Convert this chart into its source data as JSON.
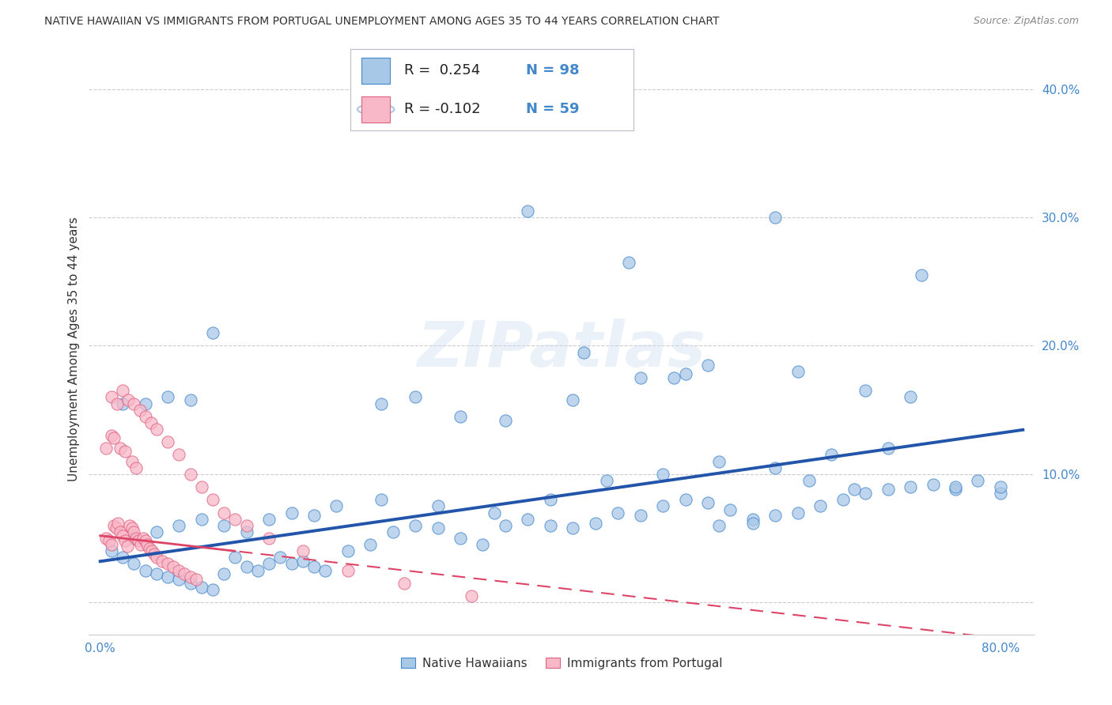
{
  "title": "NATIVE HAWAIIAN VS IMMIGRANTS FROM PORTUGAL UNEMPLOYMENT AMONG AGES 35 TO 44 YEARS CORRELATION CHART",
  "source": "Source: ZipAtlas.com",
  "ylabel": "Unemployment Among Ages 35 to 44 years",
  "color_blue_fill": "#a8c8e8",
  "color_blue_edge": "#4488cc",
  "color_pink_fill": "#f8b8c8",
  "color_pink_edge": "#e06080",
  "color_blue_line": "#2255aa",
  "color_pink_line": "#dd4466",
  "color_tick_label": "#4488cc",
  "color_grid": "#cccccc",
  "color_title": "#333333",
  "color_source": "#888888",
  "blue_slope": 0.125,
  "blue_intercept": 0.032,
  "pink_slope": -0.1,
  "pink_intercept": 0.052,
  "blue_x": [
    0.01,
    0.02,
    0.03,
    0.04,
    0.05,
    0.06,
    0.07,
    0.08,
    0.09,
    0.1,
    0.11,
    0.12,
    0.13,
    0.14,
    0.15,
    0.16,
    0.17,
    0.18,
    0.19,
    0.2,
    0.22,
    0.24,
    0.26,
    0.28,
    0.3,
    0.32,
    0.34,
    0.36,
    0.38,
    0.4,
    0.42,
    0.44,
    0.46,
    0.48,
    0.5,
    0.52,
    0.54,
    0.56,
    0.58,
    0.6,
    0.62,
    0.64,
    0.66,
    0.68,
    0.7,
    0.72,
    0.74,
    0.76,
    0.78,
    0.8,
    0.03,
    0.05,
    0.07,
    0.09,
    0.11,
    0.13,
    0.15,
    0.17,
    0.19,
    0.21,
    0.25,
    0.3,
    0.35,
    0.4,
    0.45,
    0.5,
    0.55,
    0.6,
    0.65,
    0.7,
    0.38,
    0.43,
    0.47,
    0.51,
    0.52,
    0.6,
    0.73,
    0.1,
    0.08,
    0.06,
    0.04,
    0.02,
    0.25,
    0.28,
    0.32,
    0.36,
    0.42,
    0.48,
    0.54,
    0.62,
    0.68,
    0.72,
    0.76,
    0.8,
    0.55,
    0.58,
    0.63,
    0.67
  ],
  "blue_y": [
    0.04,
    0.035,
    0.03,
    0.025,
    0.022,
    0.02,
    0.018,
    0.015,
    0.012,
    0.01,
    0.022,
    0.035,
    0.028,
    0.025,
    0.03,
    0.035,
    0.03,
    0.032,
    0.028,
    0.025,
    0.04,
    0.045,
    0.055,
    0.06,
    0.058,
    0.05,
    0.045,
    0.06,
    0.065,
    0.06,
    0.058,
    0.062,
    0.07,
    0.068,
    0.075,
    0.08,
    0.078,
    0.072,
    0.065,
    0.068,
    0.07,
    0.075,
    0.08,
    0.085,
    0.088,
    0.09,
    0.092,
    0.088,
    0.095,
    0.085,
    0.05,
    0.055,
    0.06,
    0.065,
    0.06,
    0.055,
    0.065,
    0.07,
    0.068,
    0.075,
    0.08,
    0.075,
    0.07,
    0.08,
    0.095,
    0.1,
    0.11,
    0.105,
    0.115,
    0.12,
    0.305,
    0.195,
    0.265,
    0.175,
    0.178,
    0.3,
    0.255,
    0.21,
    0.158,
    0.16,
    0.155,
    0.155,
    0.155,
    0.16,
    0.145,
    0.142,
    0.158,
    0.175,
    0.185,
    0.18,
    0.165,
    0.16,
    0.09,
    0.09,
    0.06,
    0.062,
    0.095,
    0.088
  ],
  "pink_x": [
    0.005,
    0.008,
    0.01,
    0.012,
    0.014,
    0.016,
    0.018,
    0.02,
    0.022,
    0.024,
    0.026,
    0.028,
    0.03,
    0.032,
    0.034,
    0.036,
    0.038,
    0.04,
    0.042,
    0.044,
    0.046,
    0.048,
    0.05,
    0.055,
    0.06,
    0.065,
    0.07,
    0.075,
    0.08,
    0.085,
    0.01,
    0.015,
    0.02,
    0.025,
    0.03,
    0.035,
    0.04,
    0.045,
    0.05,
    0.06,
    0.07,
    0.08,
    0.09,
    0.1,
    0.11,
    0.12,
    0.13,
    0.15,
    0.18,
    0.22,
    0.27,
    0.33,
    0.01,
    0.012,
    0.018,
    0.022,
    0.028,
    0.032,
    0.005
  ],
  "pink_y": [
    0.05,
    0.048,
    0.045,
    0.06,
    0.058,
    0.062,
    0.055,
    0.052,
    0.048,
    0.044,
    0.06,
    0.058,
    0.055,
    0.05,
    0.048,
    0.045,
    0.05,
    0.048,
    0.045,
    0.042,
    0.04,
    0.038,
    0.035,
    0.032,
    0.03,
    0.028,
    0.025,
    0.022,
    0.02,
    0.018,
    0.16,
    0.155,
    0.165,
    0.158,
    0.155,
    0.15,
    0.145,
    0.14,
    0.135,
    0.125,
    0.115,
    0.1,
    0.09,
    0.08,
    0.07,
    0.065,
    0.06,
    0.05,
    0.04,
    0.025,
    0.015,
    0.005,
    0.13,
    0.128,
    0.12,
    0.118,
    0.11,
    0.105,
    0.12
  ]
}
